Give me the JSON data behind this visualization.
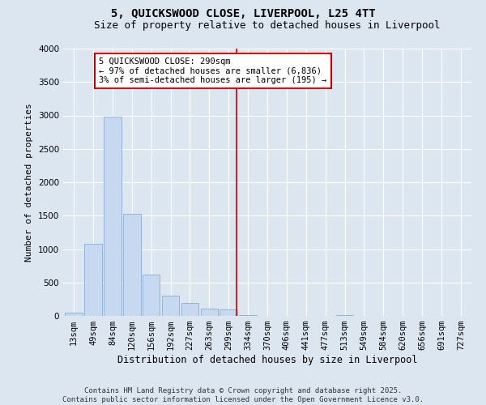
{
  "title": "5, QUICKSWOOD CLOSE, LIVERPOOL, L25 4TT",
  "subtitle": "Size of property relative to detached houses in Liverpool",
  "xlabel": "Distribution of detached houses by size in Liverpool",
  "ylabel": "Number of detached properties",
  "bar_categories": [
    "13sqm",
    "49sqm",
    "84sqm",
    "120sqm",
    "156sqm",
    "192sqm",
    "227sqm",
    "263sqm",
    "299sqm",
    "334sqm",
    "370sqm",
    "406sqm",
    "441sqm",
    "477sqm",
    "513sqm",
    "549sqm",
    "584sqm",
    "620sqm",
    "656sqm",
    "691sqm",
    "727sqm"
  ],
  "bar_values": [
    50,
    1080,
    2980,
    1530,
    620,
    300,
    200,
    115,
    100,
    18,
    0,
    0,
    0,
    0,
    18,
    0,
    0,
    0,
    0,
    0,
    0
  ],
  "bar_color": "#c6d9f1",
  "bar_edge_color": "#8eaacc",
  "vline_color": "#cc0000",
  "vline_pos": 8.43,
  "ylim_max": 4000,
  "annotation_text": "5 QUICKSWOOD CLOSE: 290sqm\n← 97% of detached houses are smaller (6,836)\n3% of semi-detached houses are larger (195) →",
  "annotation_box_facecolor": "#ffffff",
  "annotation_box_edgecolor": "#cc0000",
  "background_color": "#dce6f1",
  "title_fontsize": 10,
  "subtitle_fontsize": 9,
  "ylabel_fontsize": 8,
  "xlabel_fontsize": 8.5,
  "tick_fontsize": 7.5,
  "annotation_fontsize": 7.5,
  "footer_fontsize": 6.5,
  "footer_line1": "Contains HM Land Registry data © Crown copyright and database right 2025.",
  "footer_line2": "Contains public sector information licensed under the Open Government Licence v3.0."
}
